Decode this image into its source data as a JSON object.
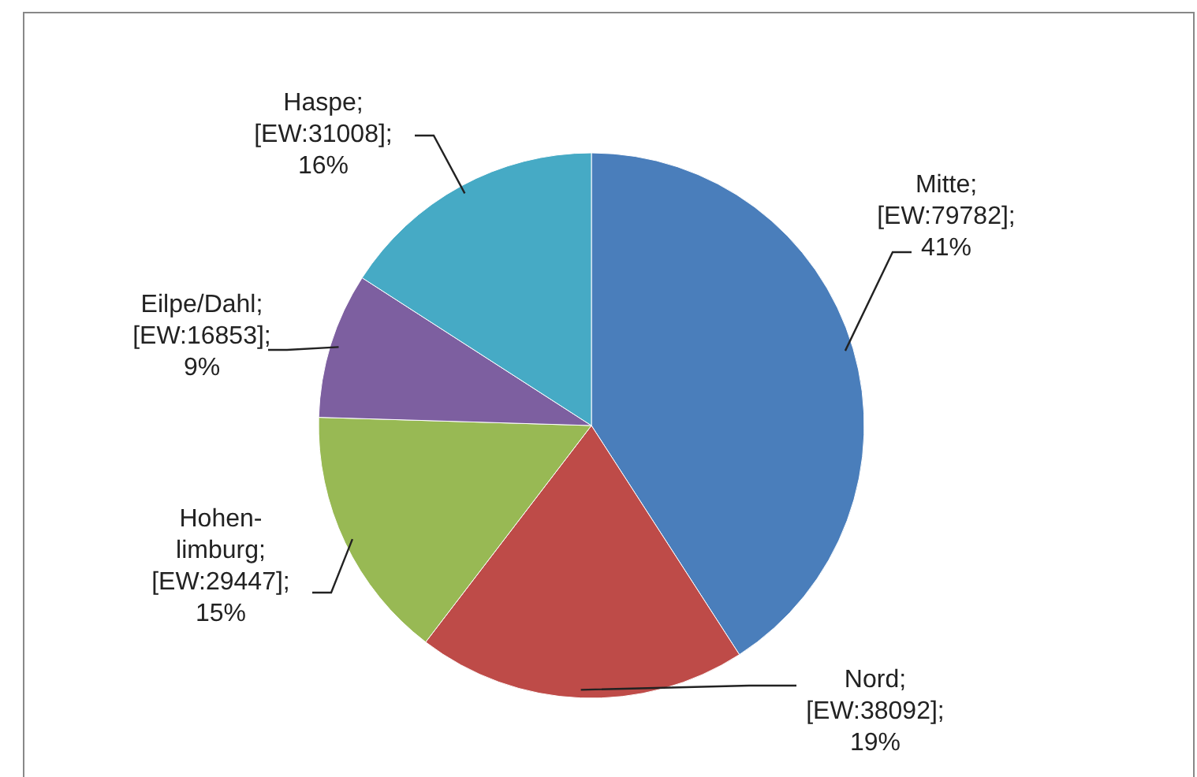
{
  "chart_data": {
    "type": "pie",
    "categories": [
      "Mitte",
      "Nord",
      "Hohen-\nlimburg",
      "Eilpe/Dahl",
      "Haspe"
    ],
    "values": [
      79782,
      38092,
      29447,
      16853,
      31008
    ],
    "colors": [
      "#4a7ebb",
      "#be4b48",
      "#98b954",
      "#7d5fa0",
      "#46aac5"
    ],
    "value_labels": [
      ";\n[EW:79782];\n41%",
      ";\n[EW:38092];\n19%",
      ";\n[EW:29447];\n15%",
      ";\n[EW:16853];\n9%",
      ";\n[EW:31008];\n16%"
    ]
  }
}
